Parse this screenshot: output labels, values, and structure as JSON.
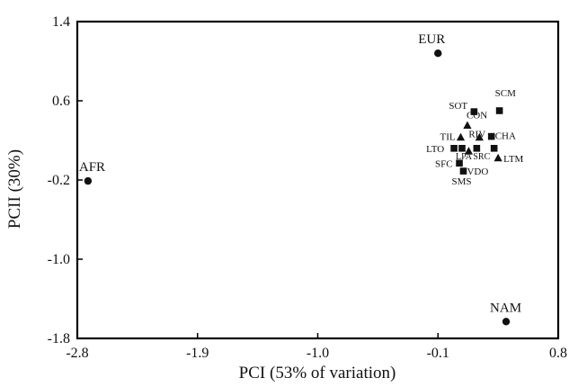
{
  "chart_data": {
    "type": "scatter",
    "title": "",
    "xlabel": "PCI (53% of variation)",
    "ylabel": "PCII (30%)",
    "xlim": [
      -2.8,
      0.8
    ],
    "ylim": [
      -1.8,
      1.4
    ],
    "xticks": [
      "-2.8",
      "-1.9",
      "-1.0",
      "-0.1",
      "0.8"
    ],
    "yticks": [
      "1.4",
      "0.6",
      "-0.2",
      "-1.0",
      "-1.8"
    ],
    "grid": false,
    "legend": "none",
    "colors": {
      "marker": "#111111",
      "axis": "#000000",
      "background": "#ffffff"
    },
    "points": [
      {
        "label": "AFR",
        "x": -2.72,
        "y": -0.21,
        "marker": "circle"
      },
      {
        "label": "EUR",
        "x": -0.1,
        "y": 1.08,
        "marker": "circle"
      },
      {
        "label": "NAM",
        "x": 0.41,
        "y": -1.63,
        "marker": "circle"
      },
      {
        "label": "SOT",
        "x": 0.17,
        "y": 0.49,
        "marker": "square"
      },
      {
        "label": "SCM",
        "x": 0.36,
        "y": 0.5,
        "marker": "square"
      },
      {
        "label": "CON",
        "x": 0.12,
        "y": 0.35,
        "marker": "triangle"
      },
      {
        "label": "TIL",
        "x": 0.07,
        "y": 0.23,
        "marker": "triangle"
      },
      {
        "label": "RIV",
        "x": 0.21,
        "y": 0.23,
        "marker": "triangle"
      },
      {
        "label": "CHA",
        "x": 0.3,
        "y": 0.24,
        "marker": "square"
      },
      {
        "label": "LTO",
        "x": 0.02,
        "y": 0.12,
        "marker": "square"
      },
      {
        "label": "LPA",
        "x": 0.08,
        "y": 0.12,
        "marker": "square"
      },
      {
        "label": "SRC",
        "x": 0.19,
        "y": 0.12,
        "marker": "square"
      },
      {
        "label": "",
        "x": 0.13,
        "y": 0.09,
        "marker": "triangle"
      },
      {
        "label": "",
        "x": 0.32,
        "y": 0.12,
        "marker": "square"
      },
      {
        "label": "LTM",
        "x": 0.35,
        "y": 0.02,
        "marker": "triangle"
      },
      {
        "label": "SFC",
        "x": 0.06,
        "y": -0.03,
        "marker": "square"
      },
      {
        "label": "VDO",
        "x": 0.09,
        "y": -0.11,
        "marker": "square"
      },
      {
        "label": "SMS",
        "x": 0.09,
        "y": -0.11,
        "marker": "none"
      }
    ]
  }
}
